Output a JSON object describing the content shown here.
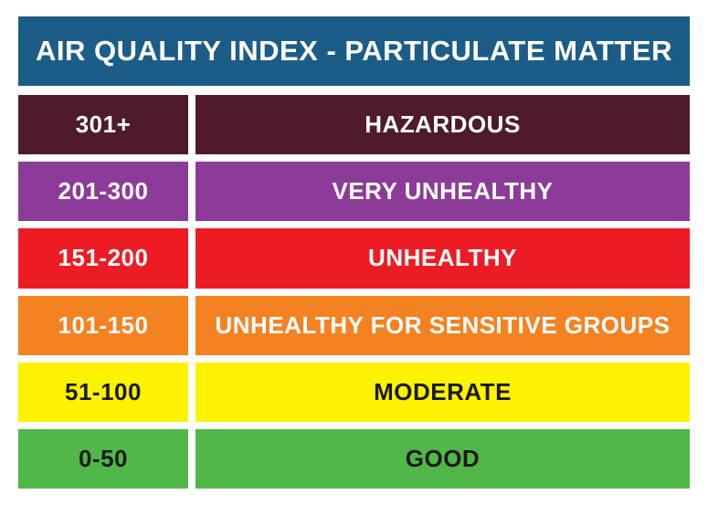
{
  "title": "AIR QUALITY INDEX - PARTICULATE MATTER",
  "title_bg": "#1b5d87",
  "title_color": "#ffffff",
  "background_color": "#ffffff",
  "row_gap": 8,
  "col_gap": 8,
  "range_col_width": 186,
  "title_fontsize": 31,
  "cell_fontsize": 26,
  "font_weight": 900,
  "rows": [
    {
      "range": "301+",
      "label": "HAZARDOUS",
      "bg": "#4e1a2c",
      "text": "#ffffff"
    },
    {
      "range": "201-300",
      "label": "VERY UNHEALTHY",
      "bg": "#8d3b98",
      "text": "#ffffff"
    },
    {
      "range": "151-200",
      "label": "UNHEALTHY",
      "bg": "#ed1c24",
      "text": "#ffffff"
    },
    {
      "range": "101-150",
      "label": "UNHEALTHY FOR SENSITIVE GROUPS",
      "bg": "#f58220",
      "text": "#ffffff"
    },
    {
      "range": "51-100",
      "label": "MODERATE",
      "bg": "#fff200",
      "text": "#1a1a1a"
    },
    {
      "range": "0-50",
      "label": "GOOD",
      "bg": "#51b748",
      "text": "#1a1a1a"
    }
  ]
}
